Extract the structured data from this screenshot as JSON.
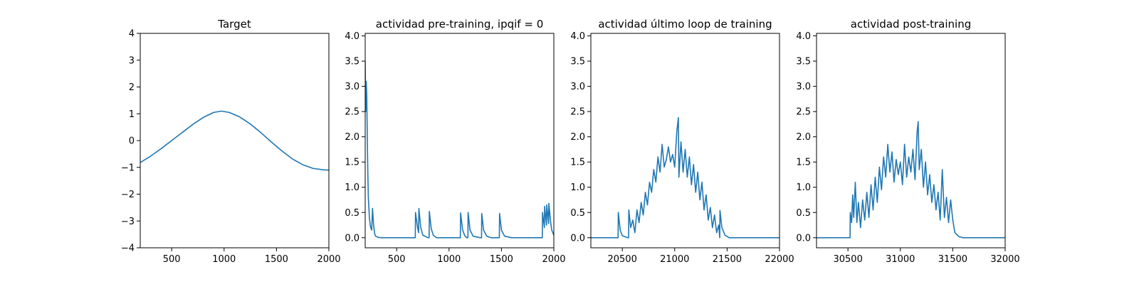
{
  "figure": {
    "background": "#ffffff",
    "line_color": "#1f77b4"
  },
  "chart_data": [
    {
      "type": "line",
      "title": "Target",
      "xlabel": "",
      "ylabel": "",
      "xlim": [
        200,
        2000
      ],
      "ylim": [
        -4,
        4
      ],
      "xticks": [
        500,
        1000,
        1500,
        2000
      ],
      "yticks": [
        -4,
        -3,
        -2,
        -1,
        0,
        1,
        2,
        3,
        4
      ],
      "xtick_labels": [
        "500",
        "1000",
        "1500",
        "2000"
      ],
      "ytick_labels": [
        "−4",
        "−3",
        "−2",
        "−1",
        "0",
        "1",
        "2",
        "3",
        "4"
      ],
      "grid": false,
      "x": [
        200,
        300,
        400,
        500,
        600,
        700,
        800,
        900,
        975,
        1050,
        1150,
        1250,
        1350,
        1450,
        1550,
        1650,
        1750,
        1850,
        1950,
        2000
      ],
      "y": [
        -0.82,
        -0.58,
        -0.3,
        0.0,
        0.3,
        0.6,
        0.86,
        1.05,
        1.1,
        1.05,
        0.88,
        0.62,
        0.3,
        -0.05,
        -0.38,
        -0.68,
        -0.9,
        -1.04,
        -1.09,
        -1.1
      ]
    },
    {
      "type": "line",
      "title": "actividad pre-training, ipqif = 0",
      "xlabel": "",
      "ylabel": "",
      "xlim": [
        200,
        2000
      ],
      "ylim": [
        -0.2,
        4.05
      ],
      "xticks": [
        500,
        1000,
        1500,
        2000
      ],
      "yticks": [
        0.0,
        0.5,
        1.0,
        1.5,
        2.0,
        2.5,
        3.0,
        3.5,
        4.0
      ],
      "xtick_labels": [
        "500",
        "1000",
        "1500",
        "2000"
      ],
      "ytick_labels": [
        "0.0",
        "0.5",
        "1.0",
        "1.5",
        "2.0",
        "2.5",
        "3.0",
        "3.5",
        "4.0"
      ],
      "grid": false,
      "x": [
        200,
        205,
        210,
        215,
        220,
        225,
        230,
        240,
        250,
        262,
        270,
        280,
        290,
        300,
        320,
        350,
        400,
        500,
        600,
        678,
        680,
        700,
        710,
        712,
        730,
        750,
        800,
        810,
        812,
        830,
        850,
        880,
        900,
        1000,
        1100,
        1108,
        1110,
        1130,
        1150,
        1170,
        1180,
        1182,
        1200,
        1230,
        1300,
        1310,
        1312,
        1330,
        1360,
        1400,
        1480,
        1482,
        1500,
        1530,
        1600,
        1700,
        1800,
        1890,
        1892,
        1910,
        1912,
        1930,
        1932,
        1950,
        1952,
        1970,
        1980,
        2000
      ],
      "y": [
        3.5,
        2.5,
        3.1,
        2.8,
        2.0,
        1.3,
        0.8,
        0.4,
        0.22,
        0.15,
        0.58,
        0.25,
        0.08,
        0.03,
        0.01,
        0.0,
        0.0,
        0.0,
        0.0,
        0.0,
        0.5,
        0.2,
        0.1,
        0.58,
        0.2,
        0.05,
        0.0,
        0.0,
        0.52,
        0.18,
        0.05,
        0.0,
        0.0,
        0.0,
        0.0,
        0.0,
        0.49,
        0.15,
        0.04,
        0.0,
        0.0,
        0.5,
        0.15,
        0.03,
        0.0,
        0.0,
        0.48,
        0.15,
        0.03,
        0.0,
        0.0,
        0.48,
        0.15,
        0.03,
        0.0,
        0.0,
        0.0,
        0.0,
        0.5,
        0.2,
        0.62,
        0.25,
        0.65,
        0.28,
        0.68,
        0.3,
        0.15,
        0.05
      ]
    },
    {
      "type": "line",
      "title": "actividad último loop de training",
      "xlabel": "",
      "ylabel": "",
      "xlim": [
        20200,
        22000
      ],
      "ylim": [
        -0.2,
        4.05
      ],
      "xticks": [
        20500,
        21000,
        21500,
        22000
      ],
      "yticks": [
        0.0,
        0.5,
        1.0,
        1.5,
        2.0,
        2.5,
        3.0,
        3.5,
        4.0
      ],
      "xtick_labels": [
        "20500",
        "21000",
        "21500",
        "22000"
      ],
      "ytick_labels": [
        "0.0",
        "0.5",
        "1.0",
        "1.5",
        "2.0",
        "2.5",
        "3.0",
        "3.5",
        "4.0"
      ],
      "grid": false,
      "x": [
        20200,
        20450,
        20460,
        20462,
        20480,
        20500,
        20550,
        20560,
        20562,
        20580,
        20600,
        20620,
        20640,
        20660,
        20680,
        20700,
        20720,
        20740,
        20760,
        20780,
        20800,
        20820,
        20840,
        20860,
        20880,
        20900,
        20920,
        20940,
        20960,
        20980,
        21000,
        21020,
        21035,
        21040,
        21060,
        21080,
        21100,
        21120,
        21140,
        21160,
        21180,
        21200,
        21220,
        21240,
        21260,
        21280,
        21300,
        21320,
        21340,
        21360,
        21380,
        21400,
        21420,
        21430,
        21432,
        21450,
        21480,
        21520,
        21600,
        22000
      ],
      "y": [
        0.0,
        0.0,
        0.0,
        0.5,
        0.15,
        0.04,
        0.0,
        0.0,
        0.55,
        0.2,
        0.35,
        0.1,
        0.55,
        0.3,
        0.7,
        0.45,
        0.9,
        0.65,
        1.1,
        0.9,
        1.35,
        1.1,
        1.6,
        1.3,
        1.85,
        1.4,
        1.55,
        1.8,
        1.5,
        1.65,
        1.4,
        2.1,
        2.38,
        1.2,
        1.9,
        1.3,
        1.75,
        1.2,
        1.6,
        1.05,
        1.45,
        0.9,
        1.3,
        0.75,
        1.1,
        0.55,
        0.85,
        0.35,
        0.6,
        0.2,
        0.45,
        0.1,
        0.25,
        0.0,
        0.54,
        0.2,
        0.05,
        0.0,
        0.0,
        0.0
      ]
    },
    {
      "type": "line",
      "title": "actividad post-training",
      "xlabel": "",
      "ylabel": "",
      "xlim": [
        30200,
        32000
      ],
      "ylim": [
        -0.2,
        4.05
      ],
      "xticks": [
        30500,
        31000,
        31500,
        32000
      ],
      "yticks": [
        0.0,
        0.5,
        1.0,
        1.5,
        2.0,
        2.5,
        3.0,
        3.5,
        4.0
      ],
      "xtick_labels": [
        "30500",
        "31000",
        "31500",
        "32000"
      ],
      "ytick_labels": [
        "0.0",
        "0.5",
        "1.0",
        "1.5",
        "2.0",
        "2.5",
        "3.0",
        "3.5",
        "4.0"
      ],
      "grid": false,
      "x": [
        30200,
        30520,
        30522,
        30535,
        30545,
        30555,
        30570,
        30585,
        30600,
        30620,
        30640,
        30660,
        30680,
        30700,
        30720,
        30740,
        30760,
        30780,
        30800,
        30820,
        30840,
        30860,
        30880,
        30900,
        30920,
        30940,
        30960,
        30980,
        31000,
        31020,
        31040,
        31060,
        31080,
        31100,
        31120,
        31140,
        31160,
        31170,
        31180,
        31200,
        31220,
        31240,
        31260,
        31280,
        31300,
        31320,
        31340,
        31360,
        31380,
        31400,
        31420,
        31440,
        31460,
        31480,
        31500,
        31520,
        31560,
        31600,
        32000
      ],
      "y": [
        0.0,
        0.0,
        0.5,
        0.3,
        0.85,
        0.4,
        1.1,
        0.3,
        0.7,
        0.2,
        0.75,
        0.35,
        0.9,
        0.4,
        1.05,
        0.55,
        1.2,
        0.7,
        1.4,
        0.95,
        1.6,
        1.2,
        1.85,
        1.3,
        1.7,
        1.1,
        1.55,
        1.25,
        1.5,
        1.05,
        1.85,
        1.2,
        1.6,
        1.3,
        1.75,
        1.15,
        2.1,
        2.3,
        1.35,
        1.75,
        1.0,
        1.5,
        0.85,
        1.25,
        0.7,
        1.05,
        0.55,
        0.9,
        0.35,
        1.35,
        0.4,
        0.8,
        0.3,
        0.75,
        0.35,
        0.1,
        0.02,
        0.0,
        0.0
      ]
    }
  ]
}
